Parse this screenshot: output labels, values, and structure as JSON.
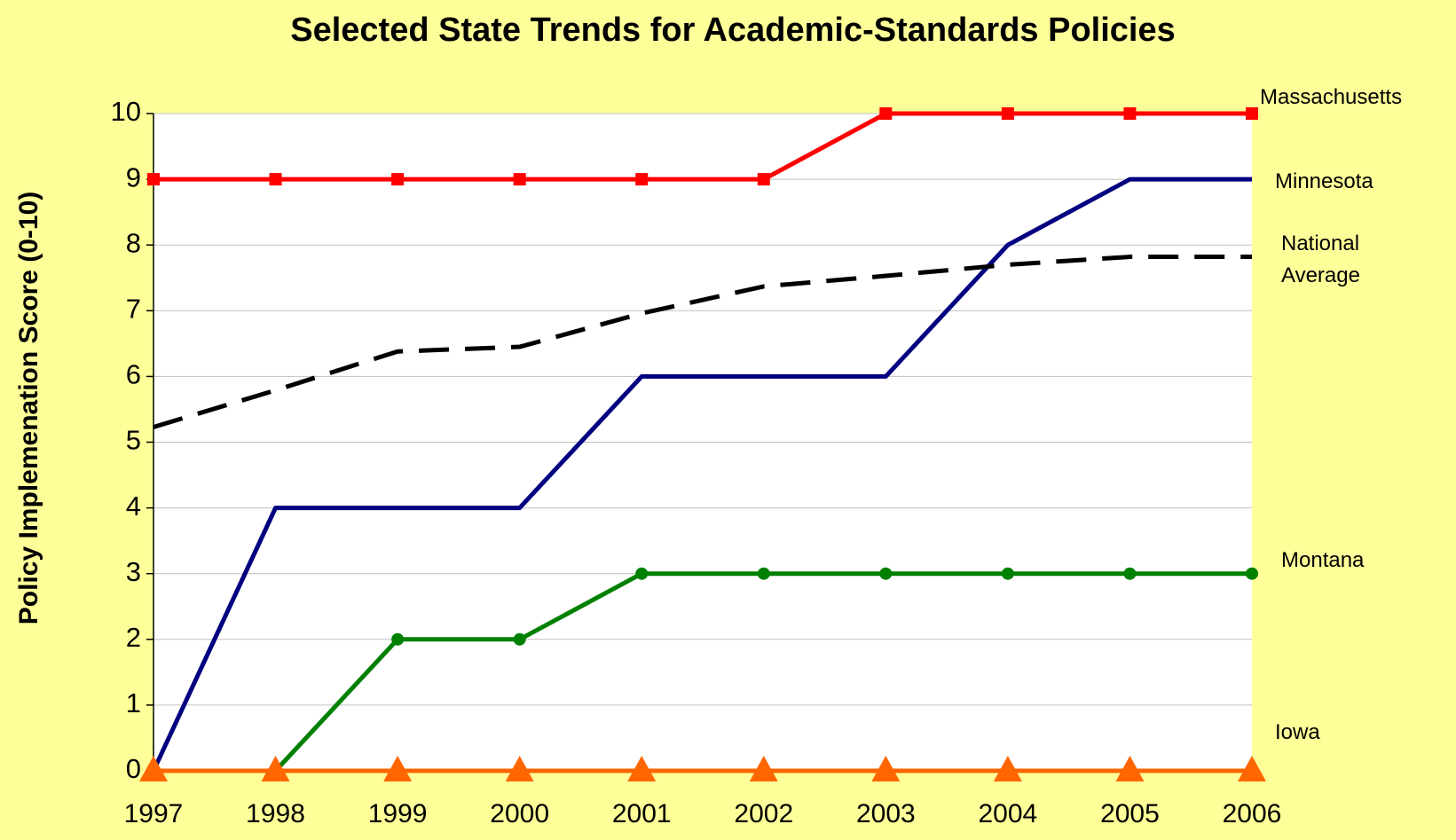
{
  "chart_data": {
    "type": "line",
    "title": "Selected State Trends for Academic-Standards Policies",
    "y_label": "Policy Implemenation Score (0-10)",
    "categories": [
      "1997",
      "1998",
      "1999",
      "2000",
      "2001",
      "2002",
      "2003",
      "2004",
      "2005",
      "2006"
    ],
    "series": [
      {
        "name": "Massachusetts",
        "color": "#ff0000",
        "marker": "square",
        "values": [
          9,
          9,
          9,
          9,
          9,
          9,
          10,
          10,
          10,
          10
        ]
      },
      {
        "name": "Minnesota",
        "color": "#000080",
        "marker": "none",
        "values": [
          0,
          4,
          4,
          4,
          6,
          6,
          6,
          8,
          9,
          9
        ]
      },
      {
        "name": "National Average",
        "color": "#000000",
        "marker": "none",
        "dashed": true,
        "values": [
          5.23,
          5.79,
          6.38,
          6.45,
          6.96,
          7.37,
          7.53,
          7.7,
          7.82,
          7.82
        ]
      },
      {
        "name": "Montana",
        "color": "#008000",
        "marker": "circle",
        "values": [
          0,
          0,
          2,
          2,
          3,
          3,
          3,
          3,
          3,
          3
        ]
      },
      {
        "name": "Iowa",
        "color": "#ff6600",
        "marker": "triangle",
        "values": [
          0,
          0,
          0,
          0,
          0,
          0,
          0,
          0,
          0,
          0
        ]
      }
    ],
    "ylim": [
      0,
      10
    ],
    "yticks": [
      0,
      1,
      2,
      3,
      4,
      5,
      6,
      7,
      8,
      9,
      10
    ],
    "grid": true
  }
}
